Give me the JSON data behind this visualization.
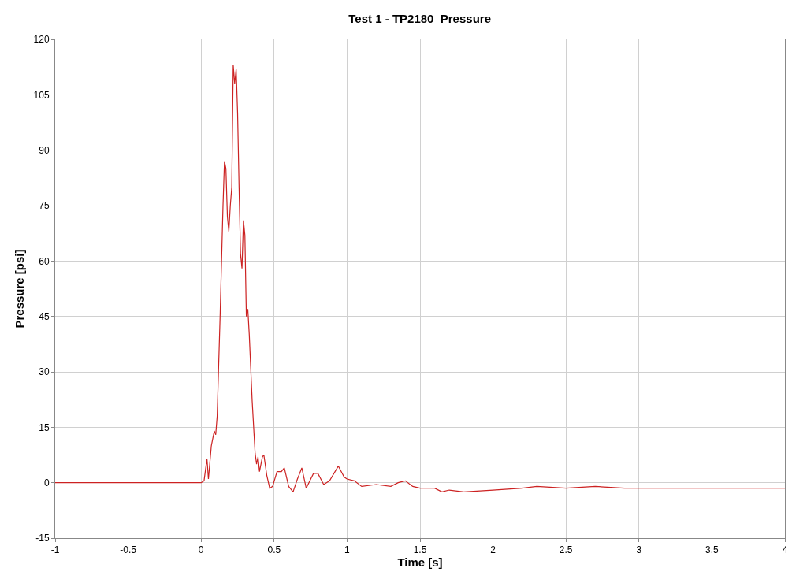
{
  "chart_data": {
    "type": "line",
    "title": "Test 1 - TP2180_Pressure",
    "xlabel": "Time [s]",
    "ylabel": "Pressure [psi]",
    "x": [
      -1,
      0,
      0.02,
      0.04,
      0.05,
      0.07,
      0.09,
      0.1,
      0.11,
      0.13,
      0.15,
      0.16,
      0.17,
      0.18,
      0.19,
      0.2,
      0.21,
      0.22,
      0.23,
      0.24,
      0.25,
      0.26,
      0.27,
      0.28,
      0.29,
      0.3,
      0.31,
      0.32,
      0.33,
      0.35,
      0.37,
      0.38,
      0.39,
      0.4,
      0.42,
      0.43,
      0.45,
      0.47,
      0.49,
      0.52,
      0.55,
      0.57,
      0.6,
      0.63,
      0.66,
      0.69,
      0.72,
      0.77,
      0.8,
      0.84,
      0.88,
      0.94,
      0.98,
      1.0,
      1.05,
      1.1,
      1.2,
      1.3,
      1.35,
      1.4,
      1.45,
      1.5,
      1.6,
      1.65,
      1.7,
      1.8,
      2.0,
      2.2,
      2.3,
      2.5,
      2.7,
      2.9,
      3.2,
      3.5,
      3.8,
      4
    ],
    "series": [
      {
        "color": "#cc2222",
        "values": [
          0,
          0,
          0.5,
          6.5,
          1,
          10,
          14,
          13,
          18,
          45,
          75,
          87,
          85,
          72,
          68,
          75,
          80,
          113,
          108,
          112,
          100,
          80,
          62,
          58,
          71,
          67,
          45,
          47,
          40,
          22,
          8,
          5,
          7,
          3,
          7,
          7.5,
          2,
          -1.5,
          -1,
          3,
          3,
          4,
          -1,
          -2.5,
          1,
          4,
          -1.5,
          2.5,
          2.5,
          -0.5,
          0.5,
          4.5,
          1.5,
          1,
          0.5,
          -1,
          -0.5,
          -1,
          0,
          0.5,
          -1,
          -1.5,
          -1.5,
          -2.5,
          -2,
          -2.5,
          -2,
          -1.5,
          -1,
          -1.5,
          -1,
          -1.5,
          -1.5,
          -1.5,
          -1.5,
          -1.5
        ]
      }
    ],
    "xlim": [
      -1,
      4
    ],
    "xticks": [
      -1,
      -0.5,
      0,
      0.5,
      1,
      1.5,
      2,
      2.5,
      3,
      3.5,
      4
    ],
    "ylim": [
      -15,
      120
    ],
    "yticks": [
      -15,
      0,
      15,
      30,
      45,
      60,
      75,
      90,
      105,
      120
    ],
    "grid": true,
    "marker": "none",
    "line_style": "solid"
  }
}
